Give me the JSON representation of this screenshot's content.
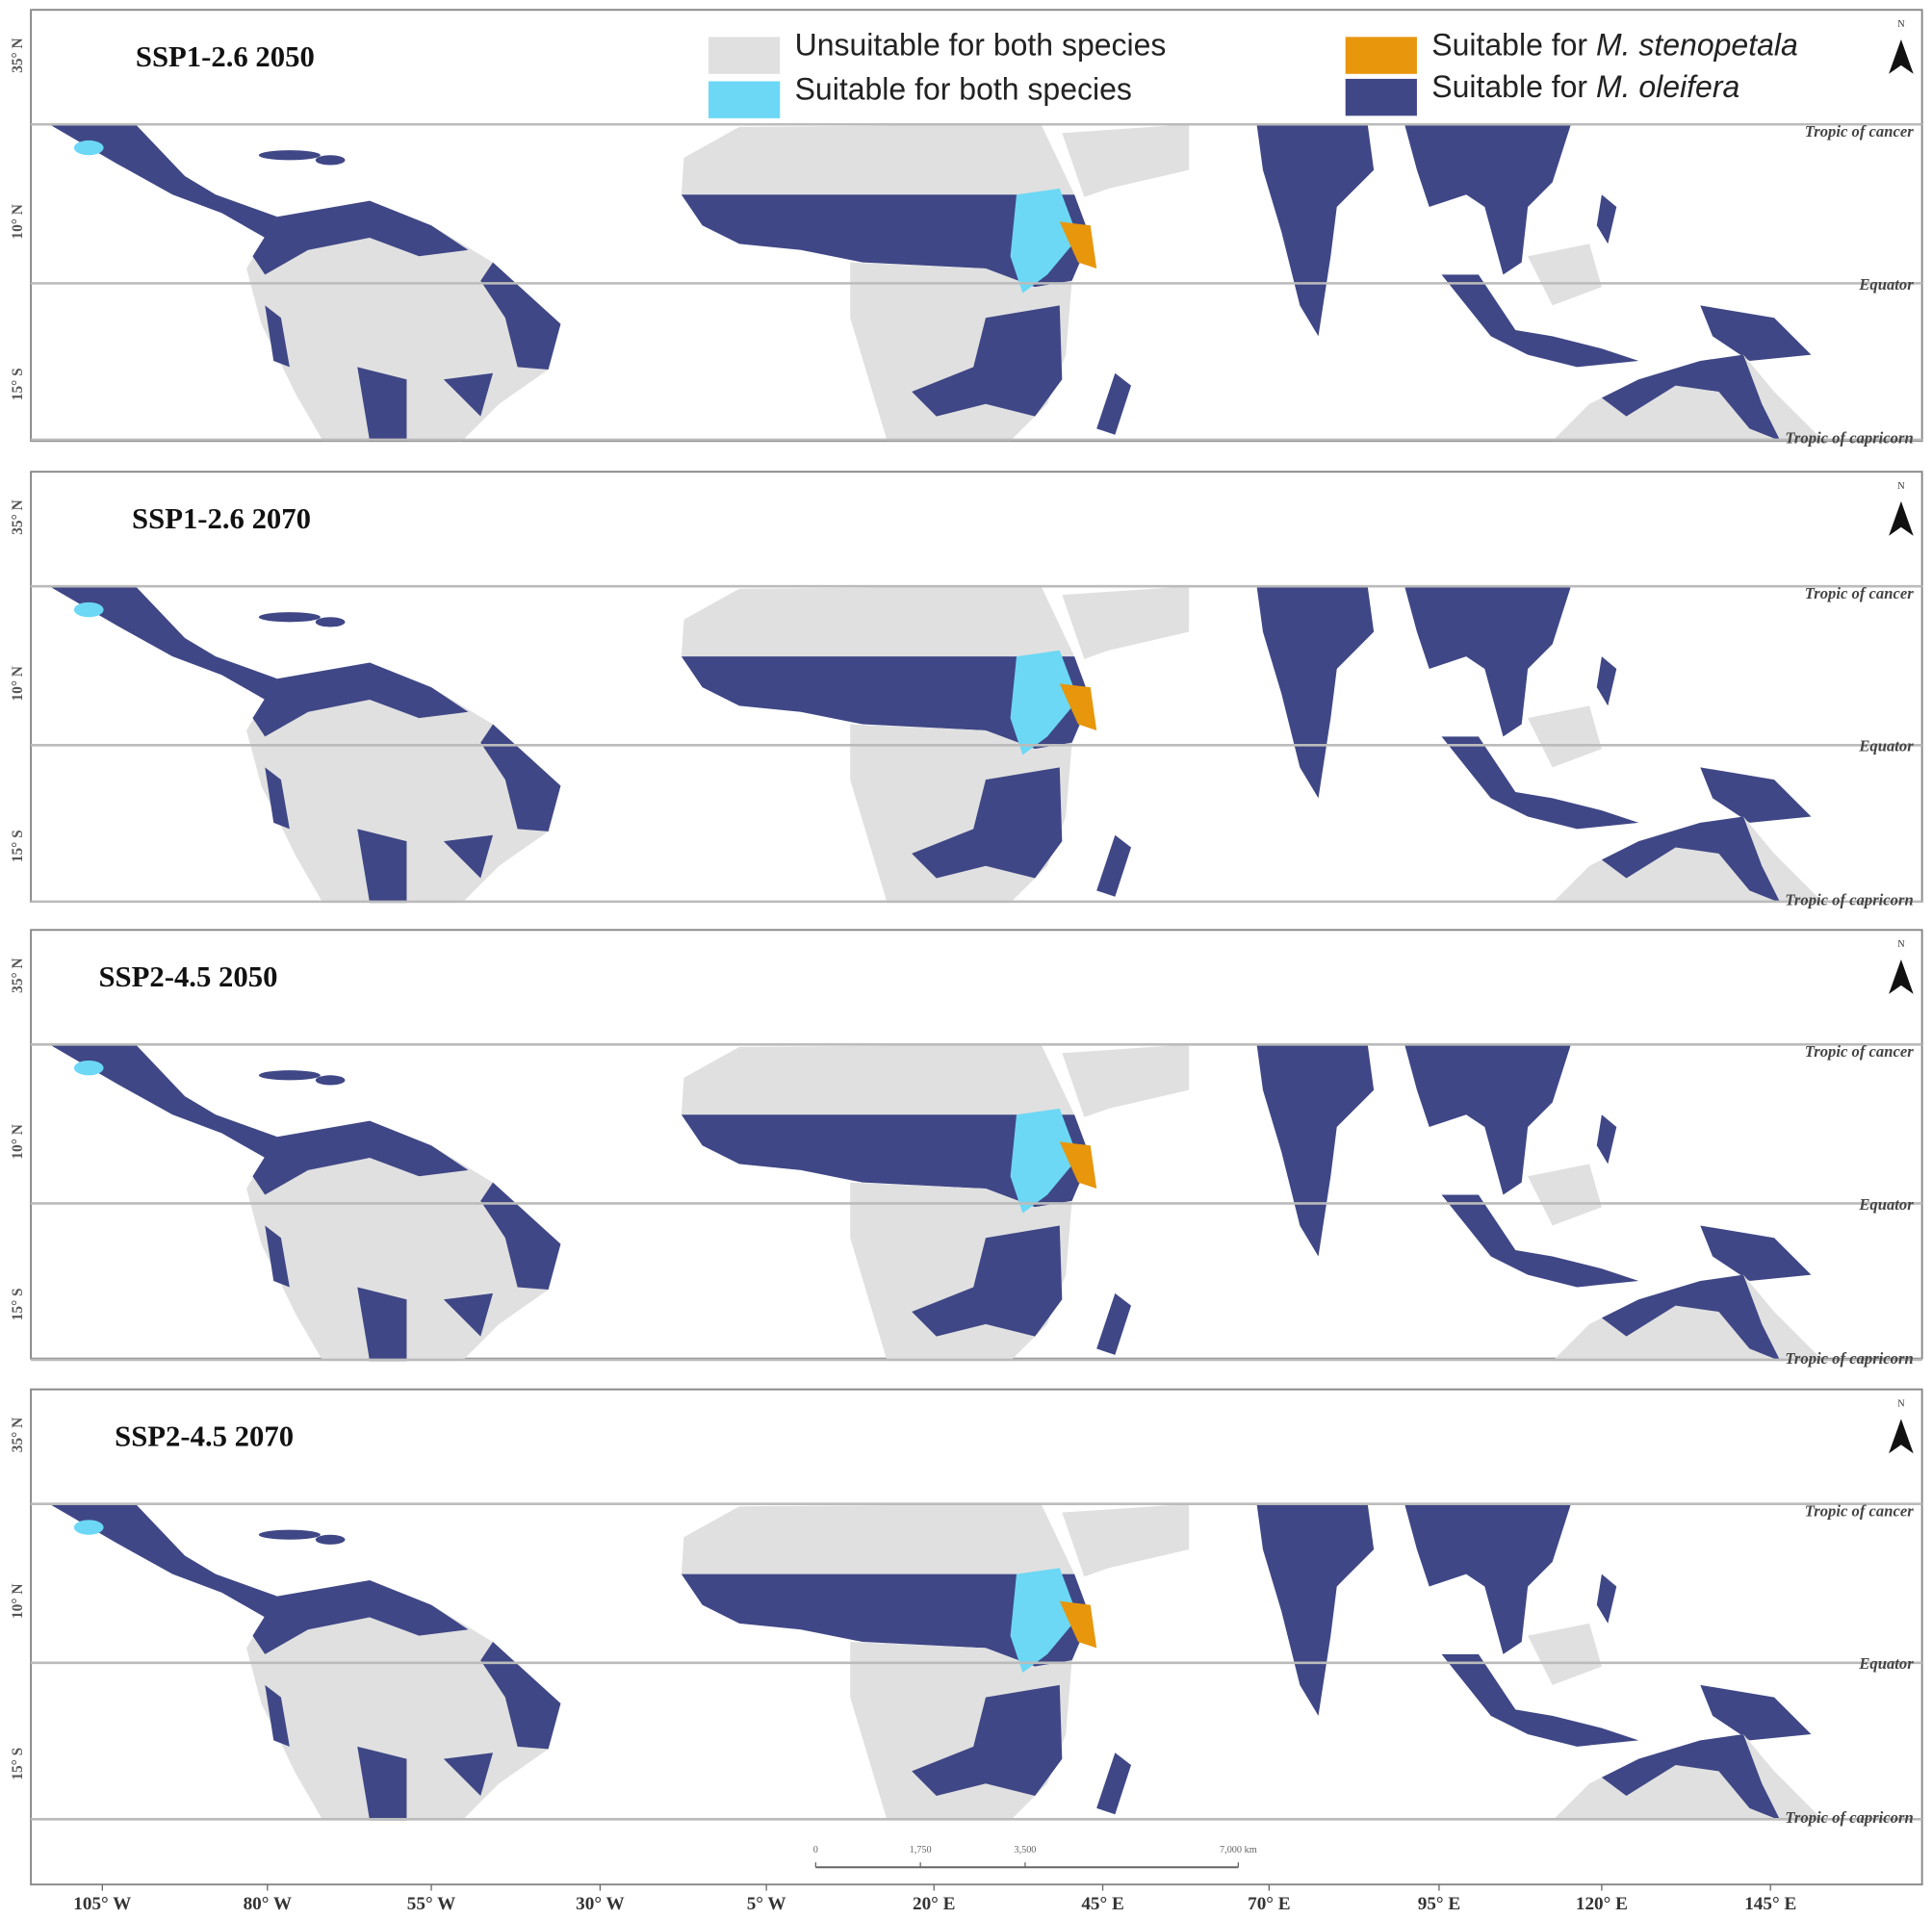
{
  "panels": [
    {
      "title": "SSP1-2.6 2050"
    },
    {
      "title": "SSP1-2.6 2070"
    },
    {
      "title": "SSP2-4.5 2050"
    },
    {
      "title": "SSP2-4.5 2070"
    }
  ],
  "legend": [
    {
      "label": "Unsuitable for both species",
      "color": "#e0e0e0"
    },
    {
      "label": "Suitable for both species",
      "color": "#6cd8f5"
    },
    {
      "prefix": "Suitable for ",
      "species": "M. stenopetala",
      "color": "#e8960c"
    },
    {
      "prefix": "Suitable for ",
      "species": "M. oleifera",
      "color": "#3f4786"
    }
  ],
  "latitude_labels": [
    "35° N",
    "10° N",
    "15° S"
  ],
  "reference_lines": [
    "Tropic of cancer",
    "Equator",
    "Tropic of capricorn"
  ],
  "north": "N",
  "longitude_labels": [
    "105° W",
    "80° W",
    "55° W",
    "30° W",
    "5° W",
    "20° E",
    "45° E",
    "70° E",
    "95° E",
    "120° E",
    "145° E"
  ],
  "scale_bar": [
    "0",
    "1,750",
    "3,500",
    "7,000 km"
  ]
}
